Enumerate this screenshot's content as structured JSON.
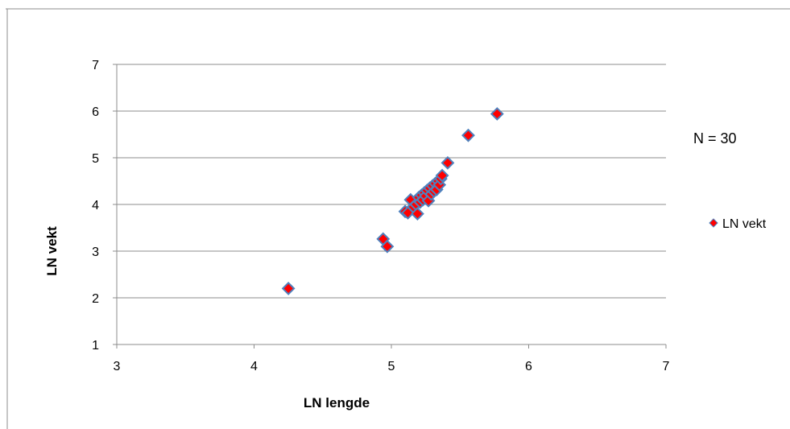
{
  "chart_data": {
    "type": "scatter",
    "title": "",
    "xlabel": "LN lengde",
    "ylabel": "LN vekt",
    "xlim": [
      3,
      7
    ],
    "ylim": [
      1,
      7
    ],
    "xticks": [
      3,
      4,
      5,
      6,
      7
    ],
    "yticks": [
      1,
      2,
      3,
      4,
      5,
      6,
      7
    ],
    "grid": "horizontal",
    "legend_position": "right",
    "annotation": "N = 30",
    "series": [
      {
        "name": "LN vekt",
        "color": "#ff0000",
        "edge_color": "#4f81bd",
        "marker": "diamond",
        "points": [
          {
            "x": 4.25,
            "y": 2.2
          },
          {
            "x": 4.94,
            "y": 3.26
          },
          {
            "x": 4.97,
            "y": 3.1
          },
          {
            "x": 5.1,
            "y": 3.85
          },
          {
            "x": 5.12,
            "y": 3.82
          },
          {
            "x": 5.14,
            "y": 4.1
          },
          {
            "x": 5.16,
            "y": 3.95
          },
          {
            "x": 5.18,
            "y": 4.0
          },
          {
            "x": 5.19,
            "y": 3.8
          },
          {
            "x": 5.2,
            "y": 4.15
          },
          {
            "x": 5.21,
            "y": 4.05
          },
          {
            "x": 5.22,
            "y": 4.2
          },
          {
            "x": 5.23,
            "y": 4.1
          },
          {
            "x": 5.24,
            "y": 4.25
          },
          {
            "x": 5.25,
            "y": 4.18
          },
          {
            "x": 5.26,
            "y": 4.3
          },
          {
            "x": 5.27,
            "y": 4.08
          },
          {
            "x": 5.28,
            "y": 4.35
          },
          {
            "x": 5.29,
            "y": 4.22
          },
          {
            "x": 5.3,
            "y": 4.4
          },
          {
            "x": 5.31,
            "y": 4.28
          },
          {
            "x": 5.32,
            "y": 4.45
          },
          {
            "x": 5.33,
            "y": 4.32
          },
          {
            "x": 5.34,
            "y": 4.5
          },
          {
            "x": 5.35,
            "y": 4.42
          },
          {
            "x": 5.36,
            "y": 4.55
          },
          {
            "x": 5.37,
            "y": 4.62
          },
          {
            "x": 5.41,
            "y": 4.89
          },
          {
            "x": 5.56,
            "y": 5.48
          },
          {
            "x": 5.77,
            "y": 5.94
          }
        ]
      }
    ]
  }
}
